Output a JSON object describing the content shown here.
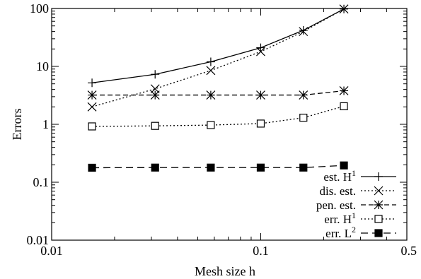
{
  "chart_data": {
    "type": "line",
    "xscale": "log",
    "yscale": "log",
    "xlim": [
      0.01,
      0.5
    ],
    "ylim": [
      0.01,
      100
    ],
    "xlabel": "Mesh size h",
    "ylabel": "Errors",
    "xticks": [
      {
        "value": 0.01,
        "label": "0.01"
      },
      {
        "value": 0.1,
        "label": "0.1"
      },
      {
        "value": 0.5,
        "label": "0.5"
      }
    ],
    "yticks": [
      {
        "value": 0.01,
        "label": "0.01"
      },
      {
        "value": 0.1,
        "label": "0.1"
      },
      {
        "value": 1,
        "label": "1"
      },
      {
        "value": 10,
        "label": "10"
      },
      {
        "value": 100,
        "label": "100"
      }
    ],
    "grid": false,
    "legend_position": "bottom-right",
    "x": [
      0.0156,
      0.03125,
      0.0577,
      0.1,
      0.16,
      0.25
    ],
    "series": [
      {
        "name": "est. H",
        "name_sup": "1",
        "line": "solid",
        "marker": "plus",
        "values": [
          5.2,
          7.3,
          12,
          21,
          42,
          98
        ]
      },
      {
        "name": "dis. est.",
        "name_sup": "",
        "line": "dotted",
        "marker": "cross",
        "values": [
          2.0,
          4.1,
          8.5,
          18,
          40,
          98
        ]
      },
      {
        "name": "pen. est.",
        "name_sup": "",
        "line": "dashed",
        "marker": "star",
        "values": [
          3.2,
          3.2,
          3.2,
          3.2,
          3.2,
          3.8
        ]
      },
      {
        "name": "err. H",
        "name_sup": "1",
        "line": "dotted",
        "marker": "open-square",
        "values": [
          0.92,
          0.94,
          0.97,
          1.03,
          1.3,
          2.05
        ]
      },
      {
        "name": "err. L",
        "name_sup": "2",
        "line": "longdash",
        "marker": "filled-square",
        "values": [
          0.178,
          0.179,
          0.179,
          0.179,
          0.179,
          0.195
        ]
      }
    ]
  }
}
